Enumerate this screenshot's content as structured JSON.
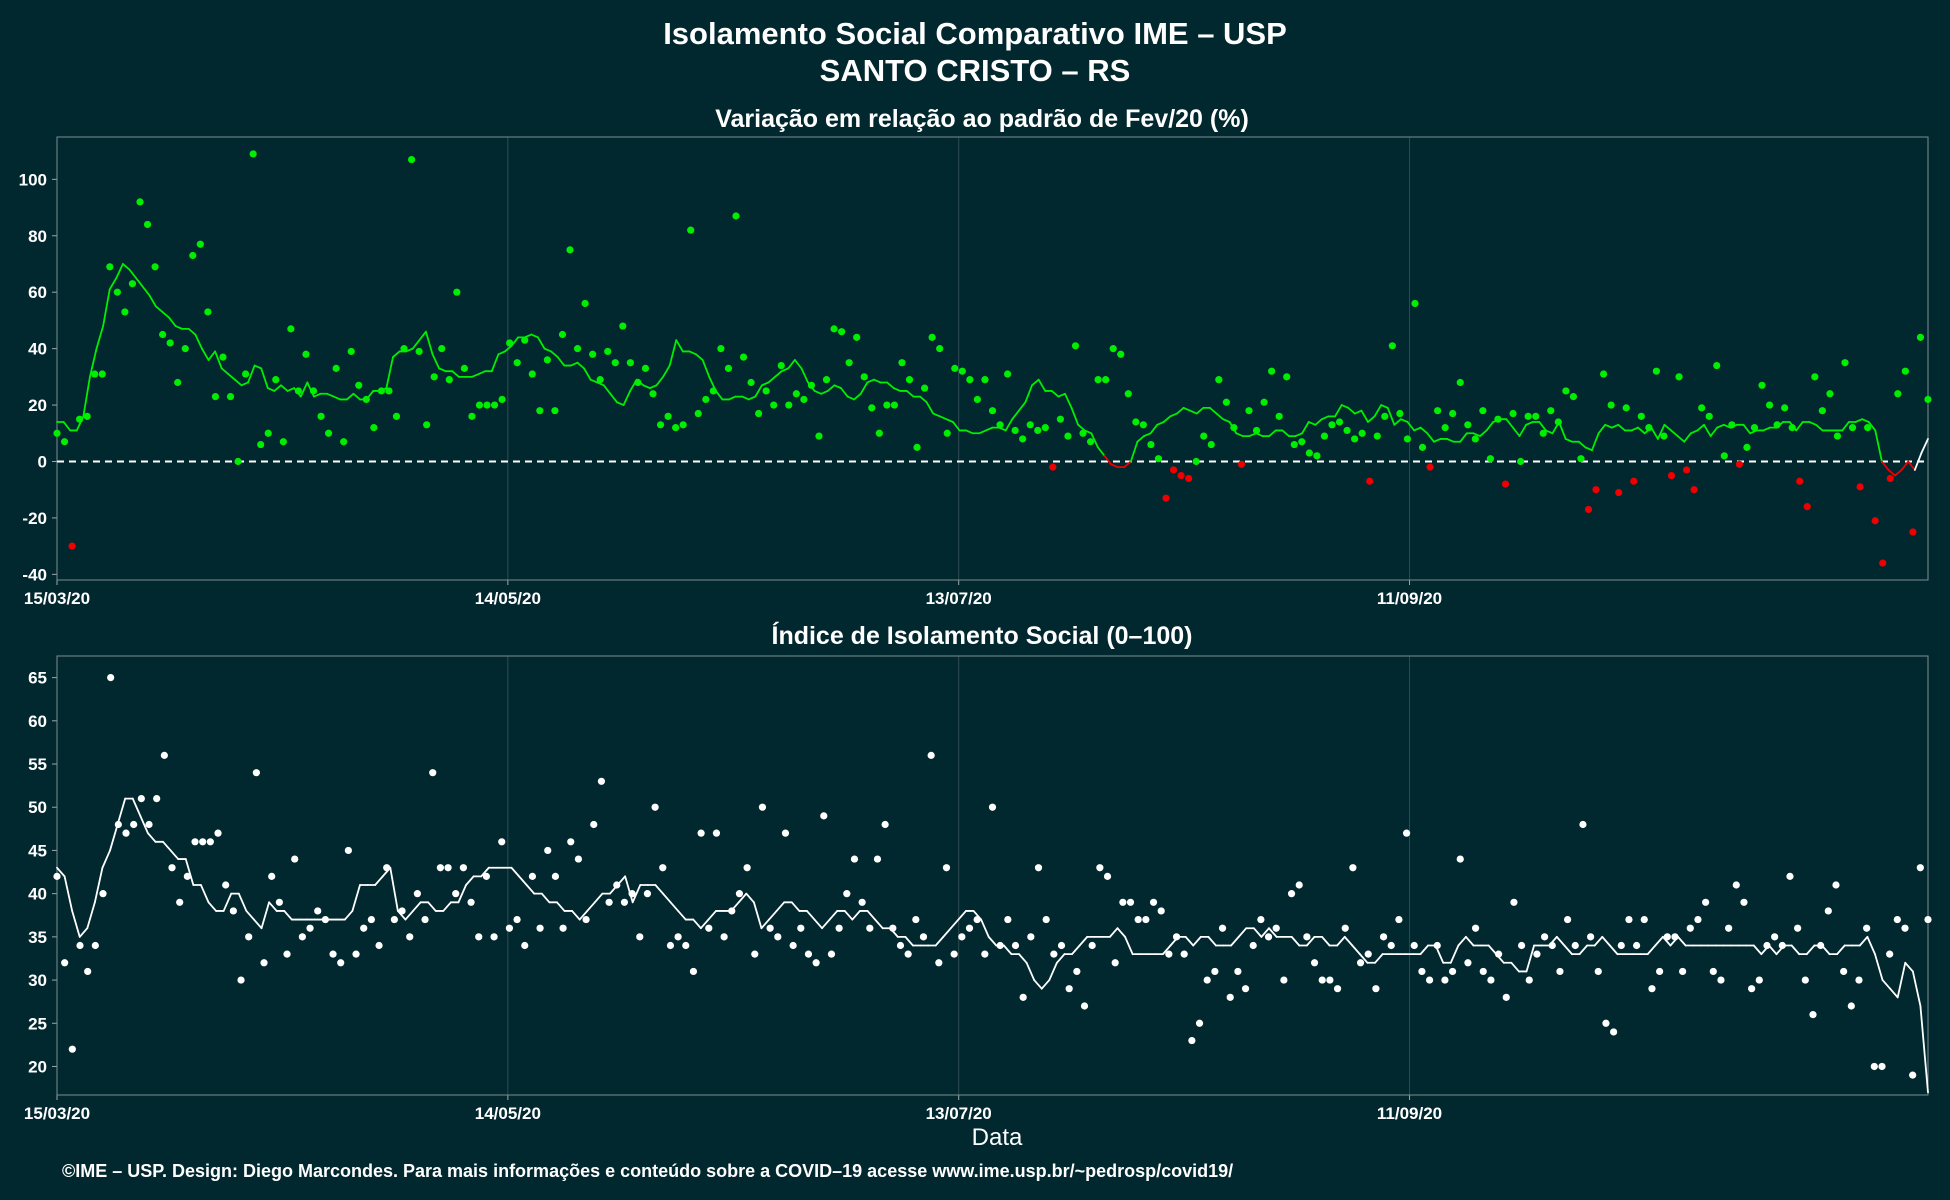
{
  "header": {
    "title_line1": "Isolamento Social Comparativo IME – USP",
    "title_line2": "SANTO CRISTO – RS"
  },
  "footer": {
    "credit": "©IME – USP. Design: Diego Marcondes. Para mais informações e conteúdo sobre a COVID–19 acesse www.ime.usp.br/~pedrosp/covid19/"
  },
  "colors": {
    "background": "#02282f",
    "above_zero": "#00ee00",
    "below_zero": "#ee0000",
    "index_points": "#ffffff",
    "grid": "#2f4a50"
  },
  "chart_data": [
    {
      "type": "scatter",
      "title": "Variação em relação ao padrão de Fev/20 (%)",
      "xlabel": "",
      "ylabel": "",
      "x_ticks": [
        "15/03/20",
        "14/05/20",
        "13/07/20",
        "11/09/20"
      ],
      "y_ticks": [
        -40,
        -20,
        0,
        20,
        40,
        60,
        80,
        100
      ],
      "ylim": [
        -42,
        115
      ],
      "xlim_days": [
        0,
        249
      ],
      "reference_line": 0,
      "series": [
        {
          "values": [
            10,
            7,
            -30,
            15,
            16,
            31,
            31,
            69,
            60,
            53,
            63,
            92,
            84,
            69,
            45,
            42,
            28,
            40,
            73,
            77,
            53,
            23,
            37,
            23,
            0,
            31,
            109,
            6,
            10,
            29,
            7,
            47,
            25,
            38,
            25,
            16,
            10,
            33,
            7,
            39,
            27,
            22,
            12,
            25,
            25,
            16,
            40,
            107,
            39,
            13,
            30,
            40,
            29,
            60,
            33,
            16,
            20,
            20,
            20,
            22,
            42,
            35,
            43,
            31,
            18,
            36,
            18,
            45,
            75,
            40,
            56,
            38,
            29,
            39,
            35,
            48,
            35,
            28,
            33,
            24,
            13,
            16,
            12,
            13,
            82,
            17,
            22,
            25,
            40,
            33,
            87,
            37,
            28,
            17,
            25,
            20,
            34,
            20,
            24,
            22,
            27,
            9,
            29,
            47,
            46,
            35,
            44,
            30,
            19,
            10,
            20,
            20,
            35,
            29,
            5,
            26,
            44,
            40,
            10,
            33,
            32,
            29,
            22,
            29,
            18,
            13,
            31,
            11,
            8,
            13,
            11,
            12,
            -2,
            15,
            9,
            41,
            10,
            7,
            29,
            29,
            40,
            38,
            24,
            14,
            13,
            6,
            1,
            -13,
            -3,
            -5,
            -6,
            0,
            9,
            6,
            29,
            21,
            12,
            -1,
            18,
            11,
            21,
            32,
            16,
            30,
            6,
            7,
            3,
            2,
            9,
            13,
            14,
            11,
            8,
            10,
            -7,
            9,
            16,
            41,
            17,
            8,
            56,
            5,
            -2,
            18,
            12,
            17,
            28,
            13,
            8,
            18,
            1,
            15,
            -8,
            17,
            0,
            16,
            16,
            10,
            18,
            14,
            25,
            23,
            1,
            -17,
            -10,
            31,
            20,
            -11,
            19,
            -7,
            16,
            12,
            32,
            9,
            -5,
            30,
            -3,
            -10,
            19,
            16,
            34,
            2,
            13,
            -1,
            5,
            12,
            27,
            20,
            13,
            19,
            12,
            -7,
            -16,
            30,
            18,
            24,
            9,
            35,
            12,
            -9,
            12,
            -21,
            -36,
            -6,
            24,
            32,
            -25,
            44,
            22
          ]
        },
        {
          "name": "",
          "values": [
            14,
            14,
            11,
            11,
            16,
            30,
            40,
            48,
            61,
            65,
            70,
            68,
            65,
            62,
            59,
            55,
            53,
            51,
            48,
            47,
            47,
            45,
            40,
            36,
            39,
            33,
            31,
            29,
            27,
            28,
            34,
            33,
            26,
            25,
            27,
            25,
            26,
            23,
            28,
            23,
            24,
            24,
            23,
            22,
            22,
            24,
            22,
            22,
            25,
            25,
            26,
            37,
            39,
            39,
            40,
            43,
            46,
            38,
            33,
            32,
            32,
            30,
            30,
            30,
            31,
            32,
            32,
            38,
            39,
            41,
            44,
            44,
            45,
            44,
            40,
            39,
            37,
            34,
            34,
            35,
            33,
            29,
            28,
            27,
            24,
            21,
            20,
            25,
            29,
            27,
            26,
            27,
            30,
            34,
            43,
            39,
            39,
            38,
            36,
            30,
            25,
            22,
            22,
            23,
            23,
            22,
            23,
            27,
            28,
            30,
            32,
            33,
            36,
            33,
            28,
            25,
            24,
            25,
            27,
            26,
            23,
            22,
            24,
            28,
            29,
            28,
            28,
            26,
            25,
            25,
            23,
            23,
            21,
            17,
            16,
            15,
            14,
            11,
            11,
            10,
            10,
            11,
            12,
            12,
            11,
            15,
            18,
            21,
            27,
            29,
            25,
            25,
            23,
            24,
            19,
            13,
            11,
            10,
            5,
            2,
            -1,
            -2,
            -2,
            0,
            7,
            9,
            10,
            13,
            14,
            16,
            17,
            19,
            18,
            17,
            19,
            19,
            17,
            15,
            14,
            10,
            9,
            9,
            10,
            9,
            9,
            11,
            11,
            9,
            9,
            10,
            14,
            13,
            15,
            16,
            16,
            20,
            19,
            17,
            18,
            14,
            16,
            20,
            19,
            13,
            15,
            14,
            11,
            12,
            10,
            7,
            8,
            8,
            7,
            7,
            10,
            10,
            9,
            11,
            14,
            15,
            15,
            12,
            9,
            13,
            14,
            14,
            11,
            10,
            14,
            8,
            7,
            7,
            5,
            4,
            10,
            13,
            12,
            13,
            11,
            11,
            12,
            10,
            12,
            8,
            13,
            11,
            9,
            7,
            10,
            11,
            13,
            9,
            12,
            13,
            12,
            13,
            13,
            10,
            11,
            11,
            12,
            12,
            14,
            14,
            11,
            14,
            14,
            13,
            11,
            11,
            11,
            11,
            14,
            14,
            15,
            14,
            11,
            0,
            -3,
            -5,
            -3,
            0,
            -3,
            3,
            8
          ]
        }
      ]
    },
    {
      "type": "scatter",
      "title": "Índice de Isolamento Social (0–100)",
      "xlabel": "Data",
      "ylabel": "",
      "x_ticks": [
        "15/03/20",
        "14/05/20",
        "13/07/20",
        "11/09/20"
      ],
      "y_ticks": [
        20,
        25,
        30,
        35,
        40,
        45,
        50,
        55,
        60,
        65
      ],
      "ylim": [
        16.7,
        67.5
      ],
      "xlim_days": [
        0,
        249
      ],
      "series": [
        {
          "values": [
            42,
            32,
            22,
            34,
            31,
            34,
            40,
            65,
            48,
            47,
            48,
            51,
            48,
            51,
            56,
            43,
            39,
            42,
            46,
            46,
            46,
            47,
            41,
            38,
            30,
            35,
            54,
            32,
            42,
            39,
            33,
            44,
            35,
            36,
            38,
            37,
            33,
            32,
            45,
            33,
            36,
            37,
            34,
            43,
            37,
            38,
            35,
            40,
            37,
            54,
            43,
            43,
            40,
            43,
            39,
            35,
            42,
            35,
            46,
            36,
            37,
            34,
            42,
            36,
            45,
            42,
            36,
            46,
            44,
            37,
            48,
            53,
            39,
            41,
            39,
            40,
            35,
            40,
            50,
            43,
            34,
            35,
            34,
            31,
            47,
            36,
            47,
            35,
            38,
            40,
            43,
            33,
            50,
            36,
            35,
            47,
            34,
            36,
            33,
            32,
            49,
            33,
            36,
            40,
            44,
            39,
            36,
            44,
            48,
            36,
            34,
            33,
            37,
            35,
            56,
            32,
            43,
            33,
            35,
            36,
            37,
            33,
            50,
            34,
            37,
            34,
            28,
            35,
            43,
            37,
            33,
            34,
            29,
            31,
            27,
            34,
            43,
            42,
            32,
            39,
            39,
            37,
            37,
            39,
            38,
            33,
            35,
            33,
            23,
            25,
            30,
            31,
            36,
            28,
            31,
            29,
            34,
            37,
            35,
            36,
            30,
            40,
            41,
            35,
            32,
            30,
            30,
            29,
            36,
            43,
            32,
            33,
            29,
            35,
            34,
            37,
            47,
            34,
            31,
            30,
            34,
            30,
            31,
            44,
            32,
            36,
            31,
            30,
            33,
            28,
            39,
            34,
            30,
            33,
            35,
            34,
            31,
            37,
            34,
            48,
            35,
            31,
            25,
            24,
            34,
            37,
            34,
            37,
            29,
            31,
            35,
            35,
            31,
            36,
            37,
            39,
            31,
            30,
            36,
            41,
            39,
            29,
            30,
            34,
            35,
            34,
            42,
            36,
            30,
            26,
            34,
            38,
            41,
            31,
            27,
            30,
            36,
            20,
            20,
            33,
            37,
            36,
            19,
            43,
            37
          ]
        },
        {
          "values": [
            43,
            42,
            38,
            35,
            36,
            39,
            43,
            45,
            48,
            51,
            51,
            49,
            47,
            46,
            46,
            45,
            44,
            44,
            41,
            41,
            39,
            38,
            38,
            40,
            40,
            38,
            37,
            36,
            39,
            38,
            38,
            37,
            37,
            37,
            37,
            37,
            37,
            37,
            37,
            38,
            41,
            41,
            41,
            42,
            43,
            38,
            37,
            38,
            39,
            39,
            38,
            38,
            39,
            39,
            41,
            42,
            42,
            43,
            43,
            43,
            43,
            42,
            41,
            40,
            40,
            39,
            39,
            38,
            38,
            37,
            38,
            39,
            40,
            40,
            41,
            42,
            39,
            41,
            41,
            41,
            40,
            39,
            38,
            37,
            37,
            36,
            37,
            38,
            38,
            38,
            39,
            40,
            39,
            36,
            37,
            38,
            39,
            39,
            38,
            38,
            37,
            36,
            37,
            38,
            38,
            37,
            38,
            38,
            37,
            36,
            36,
            35,
            35,
            34,
            34,
            34,
            34,
            35,
            36,
            37,
            38,
            38,
            37,
            35,
            34,
            34,
            33,
            33,
            32,
            30,
            29,
            30,
            32,
            33,
            33,
            34,
            35,
            35,
            35,
            35,
            36,
            35,
            33,
            33,
            33,
            33,
            33,
            34,
            35,
            35,
            34,
            35,
            35,
            34,
            34,
            34,
            35,
            36,
            36,
            35,
            36,
            35,
            35,
            35,
            34,
            34,
            35,
            35,
            34,
            34,
            35,
            34,
            33,
            32,
            32,
            33,
            33,
            33,
            33,
            33,
            33,
            34,
            34,
            32,
            32,
            34,
            35,
            34,
            34,
            34,
            33,
            32,
            32,
            31,
            31,
            34,
            34,
            34,
            35,
            34,
            33,
            33,
            34,
            34,
            35,
            34,
            33,
            33,
            33,
            33,
            33,
            34,
            35,
            34,
            35,
            34,
            34,
            34,
            34,
            34,
            34,
            34,
            34,
            34,
            34,
            33,
            34,
            33,
            34,
            34,
            33,
            33,
            34,
            34,
            33,
            33,
            34,
            34,
            34,
            35,
            33,
            30,
            29,
            28,
            32,
            31,
            27,
            17
          ]
        }
      ]
    }
  ]
}
